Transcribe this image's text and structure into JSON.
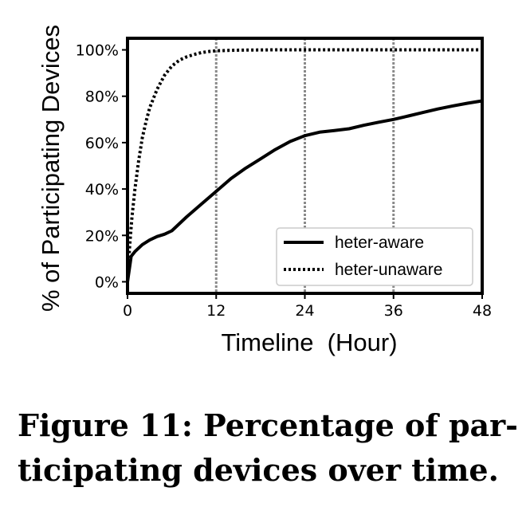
{
  "caption": {
    "line1": "Figure 11: Percentage of par-",
    "line2": "ticipating devices over time."
  },
  "chart_data": {
    "type": "line",
    "title": "",
    "xlabel": "Timeline  (Hour)",
    "ylabel": "% of Participating Devices",
    "xlim": [
      0,
      48
    ],
    "ylim": [
      -5,
      105
    ],
    "xticks": [
      0,
      12,
      24,
      36,
      48
    ],
    "xtick_labels": [
      "0",
      "12",
      "24",
      "36",
      "48"
    ],
    "yticks": [
      0,
      20,
      40,
      60,
      80,
      100
    ],
    "ytick_labels": [
      "0%",
      "20%",
      "40%",
      "60%",
      "80%",
      "100%"
    ],
    "vertical_gridlines_at": [
      12,
      24,
      36
    ],
    "legend_position": "lower-right",
    "series": [
      {
        "name": "heter-aware",
        "style": "solid",
        "color": "#000000",
        "x": [
          0,
          0.5,
          1,
          2,
          3,
          4,
          5,
          6,
          8,
          10,
          12,
          14,
          16,
          18,
          20,
          22,
          24,
          26,
          28,
          30,
          32,
          34,
          36,
          38,
          40,
          42,
          44,
          46,
          48
        ],
        "y": [
          0,
          11,
          13,
          16,
          18,
          19.5,
          20.5,
          22,
          28,
          33.5,
          39,
          44.5,
          49,
          53,
          57,
          60.5,
          63,
          64.5,
          65.2,
          66,
          67.5,
          68.8,
          70,
          71.5,
          73,
          74.5,
          75.8,
          77,
          78
        ]
      },
      {
        "name": "heter-unaware",
        "style": "dotted",
        "color": "#000000",
        "x": [
          0,
          0.3,
          0.6,
          1,
          1.5,
          2,
          2.5,
          3,
          4,
          5,
          6,
          7,
          8,
          9,
          10,
          11,
          12,
          14,
          16,
          20,
          24,
          30,
          36,
          42,
          48
        ],
        "y": [
          0,
          16,
          28,
          40,
          52,
          62,
          69,
          75,
          83,
          89,
          93,
          95.5,
          97,
          98,
          98.8,
          99.3,
          99.6,
          99.8,
          99.9,
          100,
          100,
          100,
          100,
          100,
          100
        ]
      }
    ]
  }
}
